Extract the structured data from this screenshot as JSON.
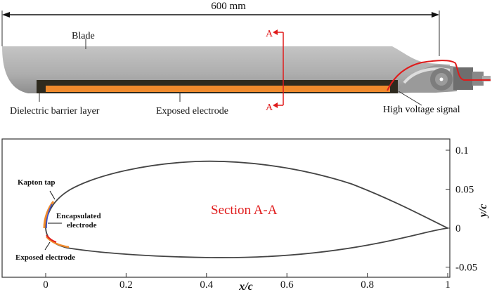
{
  "top": {
    "dimension": "600 mm",
    "blade_label": "Blade",
    "dielectric_label": "Dielectric barrier layer",
    "electrode_label": "Exposed electrode",
    "hv_label": "High voltage signal",
    "section_mark": "A"
  },
  "bottom": {
    "section_title": "Section A-A",
    "kapton_label": "Kapton tap",
    "encapsulated_label_1": "Encapsulated",
    "encapsulated_label_2": "electrode",
    "exposed_label": "Exposed electrode",
    "xlabel": "x/c",
    "ylabel": "y/c",
    "xticks": [
      "0",
      "0.2",
      "0.4",
      "0.6",
      "0.8",
      "1"
    ],
    "yticks": [
      "0.1",
      "0.05",
      "0",
      "-0.05"
    ]
  },
  "colors": {
    "blade": "#b5b5b5",
    "dielectric": "#2e2a1e",
    "electrode": "#f08a2c",
    "section_line": "#e01b1b",
    "encapsulated": "#3a4fd0"
  }
}
